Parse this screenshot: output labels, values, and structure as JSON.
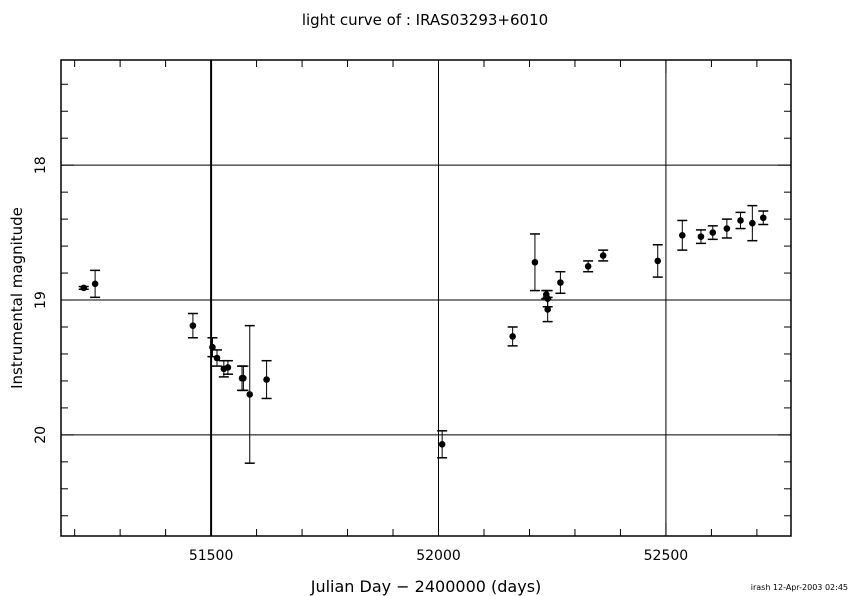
{
  "chart_data": {
    "type": "scatter",
    "title": "light curve of : IRAS03293+6010",
    "xlabel": "Julian Day − 2400000 (days)",
    "ylabel": "Instrumental magnitude",
    "footer": "irash 12-Apr-2003 02:45",
    "xlim": [
      51170,
      52775
    ],
    "ylim": [
      20.75,
      17.22
    ],
    "y_inverted": true,
    "x_ticks": [
      51500,
      52000,
      52500
    ],
    "y_ticks": [
      18,
      19,
      20
    ],
    "grid": true,
    "points": [
      {
        "x": 51220,
        "y": 18.91,
        "err": 0.01
      },
      {
        "x": 51245,
        "y": 18.88,
        "err": 0.1
      },
      {
        "x": 51460,
        "y": 19.19,
        "err": 0.09
      },
      {
        "x": 51503,
        "y": 19.35,
        "err": 0.07
      },
      {
        "x": 51513,
        "y": 19.43,
        "err": 0.06
      },
      {
        "x": 51528,
        "y": 19.51,
        "err": 0.06
      },
      {
        "x": 51537,
        "y": 19.5,
        "err": 0.05
      },
      {
        "x": 51568,
        "y": 19.58,
        "err": 0.09
      },
      {
        "x": 51571,
        "y": 19.58,
        "err": 0.09
      },
      {
        "x": 51585,
        "y": 19.7,
        "err": 0.51
      },
      {
        "x": 51622,
        "y": 19.59,
        "err": 0.14
      },
      {
        "x": 52008,
        "y": 20.07,
        "err": 0.1
      },
      {
        "x": 52163,
        "y": 19.27,
        "err": 0.07
      },
      {
        "x": 52212,
        "y": 18.72,
        "err": 0.21
      },
      {
        "x": 52237,
        "y": 18.96,
        "err": 0.03
      },
      {
        "x": 52240,
        "y": 19.07,
        "err": 0.09
      },
      {
        "x": 52240,
        "y": 18.99,
        "err": 0.06
      },
      {
        "x": 52268,
        "y": 18.87,
        "err": 0.08
      },
      {
        "x": 52329,
        "y": 18.75,
        "err": 0.04
      },
      {
        "x": 52362,
        "y": 18.67,
        "err": 0.04
      },
      {
        "x": 52482,
        "y": 18.71,
        "err": 0.12
      },
      {
        "x": 52536,
        "y": 18.52,
        "err": 0.11
      },
      {
        "x": 52577,
        "y": 18.53,
        "err": 0.05
      },
      {
        "x": 52603,
        "y": 18.5,
        "err": 0.05
      },
      {
        "x": 52634,
        "y": 18.47,
        "err": 0.07
      },
      {
        "x": 52664,
        "y": 18.41,
        "err": 0.06
      },
      {
        "x": 52690,
        "y": 18.43,
        "err": 0.13
      },
      {
        "x": 52714,
        "y": 18.39,
        "err": 0.05
      }
    ]
  }
}
